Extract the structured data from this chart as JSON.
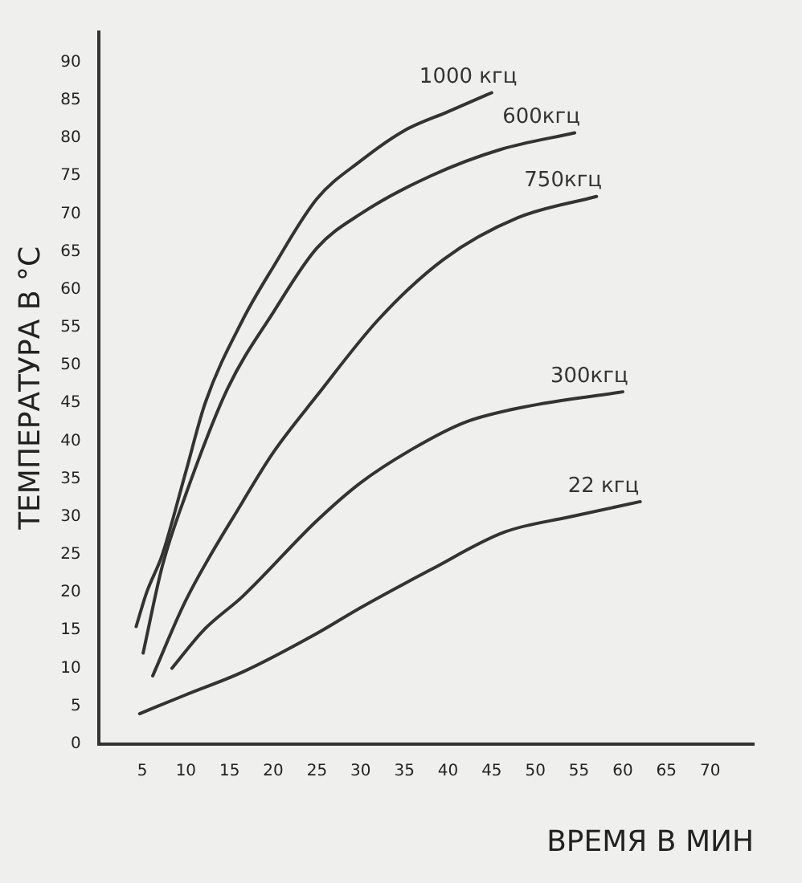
{
  "chart_data": {
    "type": "line",
    "xlabel": "ВРЕМЯ В МИН",
    "ylabel": "ТЕМПЕРАТУРА В °С",
    "xlim": [
      0,
      75
    ],
    "xticks": [
      5,
      10,
      15,
      20,
      25,
      30,
      35,
      40,
      45,
      50,
      55,
      60,
      65,
      70
    ],
    "ylim": [
      0,
      94
    ],
    "yticks": [
      0,
      5,
      10,
      15,
      20,
      25,
      30,
      35,
      40,
      45,
      50,
      55,
      60,
      65,
      70,
      75,
      80,
      85,
      90
    ],
    "grid": false,
    "legend": false,
    "marker": "none",
    "line_style": "solid",
    "series": [
      {
        "name": "1000 кгц",
        "color": "#333333",
        "x": [
          4.3,
          5.5,
          7.3,
          10,
          12.2,
          16.5,
          20,
          25,
          30,
          35,
          40,
          45
        ],
        "values": [
          15.5,
          20,
          25,
          36,
          45,
          56,
          63,
          72,
          77,
          81,
          83.5,
          86
        ]
      },
      {
        "name": "600кгц",
        "color": "#333333",
        "x": [
          5.1,
          7.3,
          10,
          14.8,
          20,
          25,
          30,
          38,
          46,
          54.5
        ],
        "values": [
          12,
          23.5,
          33,
          47,
          57,
          65.5,
          70,
          75,
          78.5,
          80.7
        ]
      },
      {
        "name": "750кгц",
        "color": "#333333",
        "x": [
          6.2,
          10,
          16.5,
          20,
          25,
          32,
          39.5,
          48,
          57
        ],
        "values": [
          9,
          19,
          32,
          38.5,
          46,
          56,
          64,
          69.5,
          72.3
        ]
      },
      {
        "name": "300кгц",
        "color": "#333333",
        "x": [
          8.4,
          12,
          16.5,
          25,
          30,
          36,
          42,
          48.7,
          60
        ],
        "values": [
          10,
          15,
          19.5,
          29.5,
          34.5,
          39,
          42.5,
          44.5,
          46.5
        ]
      },
      {
        "name": "22 кгц",
        "color": "#333333",
        "x": [
          4.7,
          10,
          16.5,
          25,
          30,
          38,
          46.5,
          54,
          62
        ],
        "values": [
          4,
          6.5,
          9.5,
          14.6,
          18,
          23,
          28,
          30,
          32
        ]
      }
    ]
  }
}
